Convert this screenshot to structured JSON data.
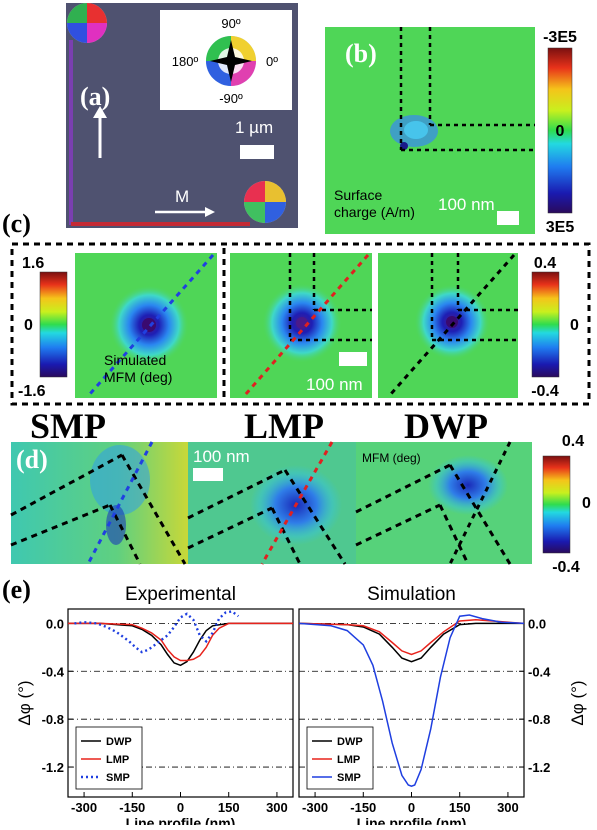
{
  "panel_a": {
    "label": "(a)",
    "compass": {
      "top": "90º",
      "left": "180º",
      "right": "0º",
      "bottom": "-90º"
    },
    "scale_label": "1 µm",
    "m_label": "M"
  },
  "panel_b": {
    "label": "(b)",
    "caption_line1": "Surface",
    "caption_line2": "charge (A/m)",
    "scale_label": "100 nm",
    "colorbar": {
      "top": "-3E5",
      "mid": "0",
      "bottom": "3E5"
    }
  },
  "panel_c": {
    "label": "(c)",
    "colorbar_left": {
      "top": "1.6",
      "mid": "0",
      "bottom": "-1.6"
    },
    "colorbar_right": {
      "top": "0.4",
      "mid": "0",
      "bottom": "-0.4"
    },
    "caption_line1": "Simulated",
    "caption_line2": "MFM (deg)",
    "scale_label": "100 nm"
  },
  "titles": {
    "smp": "SMP",
    "lmp": "LMP",
    "dwp": "DWP"
  },
  "panel_d": {
    "label": "(d)",
    "scale_label": "100 nm",
    "caption": "MFM (deg)",
    "colorbar": {
      "top": "0.4",
      "mid": "0",
      "bottom": "-0.4"
    }
  },
  "panel_e": {
    "label": "(e)"
  },
  "chart_data": [
    {
      "type": "line",
      "title": "Experimental",
      "xlabel": "Line profile (nm)",
      "ylabel": "Δφ (°)",
      "xlim": [
        -350,
        350
      ],
      "ylim": [
        -1.45,
        0.12
      ],
      "xticks": [
        -300,
        -150,
        0,
        150,
        300
      ],
      "yticks": [
        0.0,
        -0.4,
        -0.8,
        -1.2
      ],
      "legend_position": "bottom-left",
      "series": [
        {
          "name": "DWP",
          "color": "#000000",
          "dash": false,
          "x": [
            -350,
            -250,
            -150,
            -120,
            -90,
            -60,
            -40,
            -20,
            0,
            20,
            40,
            60,
            80,
            100,
            150,
            250,
            350
          ],
          "y": [
            0.0,
            0.0,
            -0.02,
            -0.05,
            -0.1,
            -0.18,
            -0.26,
            -0.33,
            -0.35,
            -0.32,
            -0.24,
            -0.14,
            -0.06,
            -0.02,
            0.0,
            0.0,
            0.0
          ]
        },
        {
          "name": "LMP",
          "color": "#e8231c",
          "dash": false,
          "x": [
            -350,
            -250,
            -150,
            -120,
            -90,
            -60,
            -40,
            -20,
            0,
            20,
            40,
            60,
            80,
            100,
            120,
            150,
            250,
            350
          ],
          "y": [
            0.0,
            0.0,
            -0.01,
            -0.04,
            -0.08,
            -0.14,
            -0.22,
            -0.28,
            -0.31,
            -0.31,
            -0.3,
            -0.27,
            -0.2,
            -0.1,
            -0.04,
            0.0,
            0.0,
            0.0
          ]
        },
        {
          "name": "SMP",
          "color": "#1f3fe0",
          "dash": true,
          "x": [
            -330,
            -300,
            -260,
            -230,
            -200,
            -180,
            -160,
            -140,
            -120,
            -100,
            -80,
            -60,
            -40,
            -20,
            0,
            20,
            40,
            60,
            80,
            100,
            120,
            140,
            160,
            180
          ],
          "y": [
            0.0,
            0.01,
            0.0,
            -0.03,
            -0.07,
            -0.11,
            -0.15,
            -0.2,
            -0.24,
            -0.22,
            -0.18,
            -0.14,
            -0.1,
            -0.03,
            0.05,
            0.08,
            0.03,
            -0.1,
            -0.15,
            -0.08,
            0.04,
            0.09,
            0.1,
            0.06
          ]
        }
      ]
    },
    {
      "type": "line",
      "title": "Simulation",
      "xlabel": "Line profile (nm)",
      "ylabel": "Δφ (°)",
      "xlim": [
        -350,
        350
      ],
      "ylim": [
        -1.45,
        0.12
      ],
      "xticks": [
        -300,
        -150,
        0,
        150,
        300
      ],
      "yticks": [
        0.0,
        -0.4,
        -0.8,
        -1.2
      ],
      "legend_position": "bottom-left",
      "series": [
        {
          "name": "DWP",
          "color": "#000000",
          "dash": false,
          "x": [
            -350,
            -200,
            -150,
            -100,
            -60,
            -30,
            0,
            30,
            60,
            100,
            150,
            200,
            350
          ],
          "y": [
            0.0,
            -0.01,
            -0.03,
            -0.09,
            -0.2,
            -0.29,
            -0.32,
            -0.29,
            -0.2,
            -0.09,
            -0.01,
            0.0,
            0.0
          ]
        },
        {
          "name": "LMP",
          "color": "#e8231c",
          "dash": false,
          "x": [
            -350,
            -200,
            -150,
            -100,
            -60,
            -30,
            0,
            30,
            60,
            100,
            150,
            200,
            350
          ],
          "y": [
            0.0,
            -0.01,
            -0.02,
            -0.07,
            -0.16,
            -0.23,
            -0.26,
            -0.23,
            -0.16,
            -0.07,
            0.02,
            0.03,
            0.0
          ]
        },
        {
          "name": "SMP",
          "color": "#1f3fe0",
          "dash": false,
          "x": [
            -350,
            -250,
            -200,
            -150,
            -120,
            -90,
            -60,
            -30,
            -10,
            0,
            10,
            30,
            60,
            90,
            120,
            150,
            180,
            220,
            280,
            350
          ],
          "y": [
            0.0,
            -0.02,
            -0.06,
            -0.18,
            -0.35,
            -0.65,
            -1.0,
            -1.27,
            -1.35,
            -1.36,
            -1.35,
            -1.22,
            -0.88,
            -0.45,
            -0.12,
            0.06,
            0.07,
            0.04,
            0.01,
            0.0
          ]
        }
      ]
    }
  ]
}
